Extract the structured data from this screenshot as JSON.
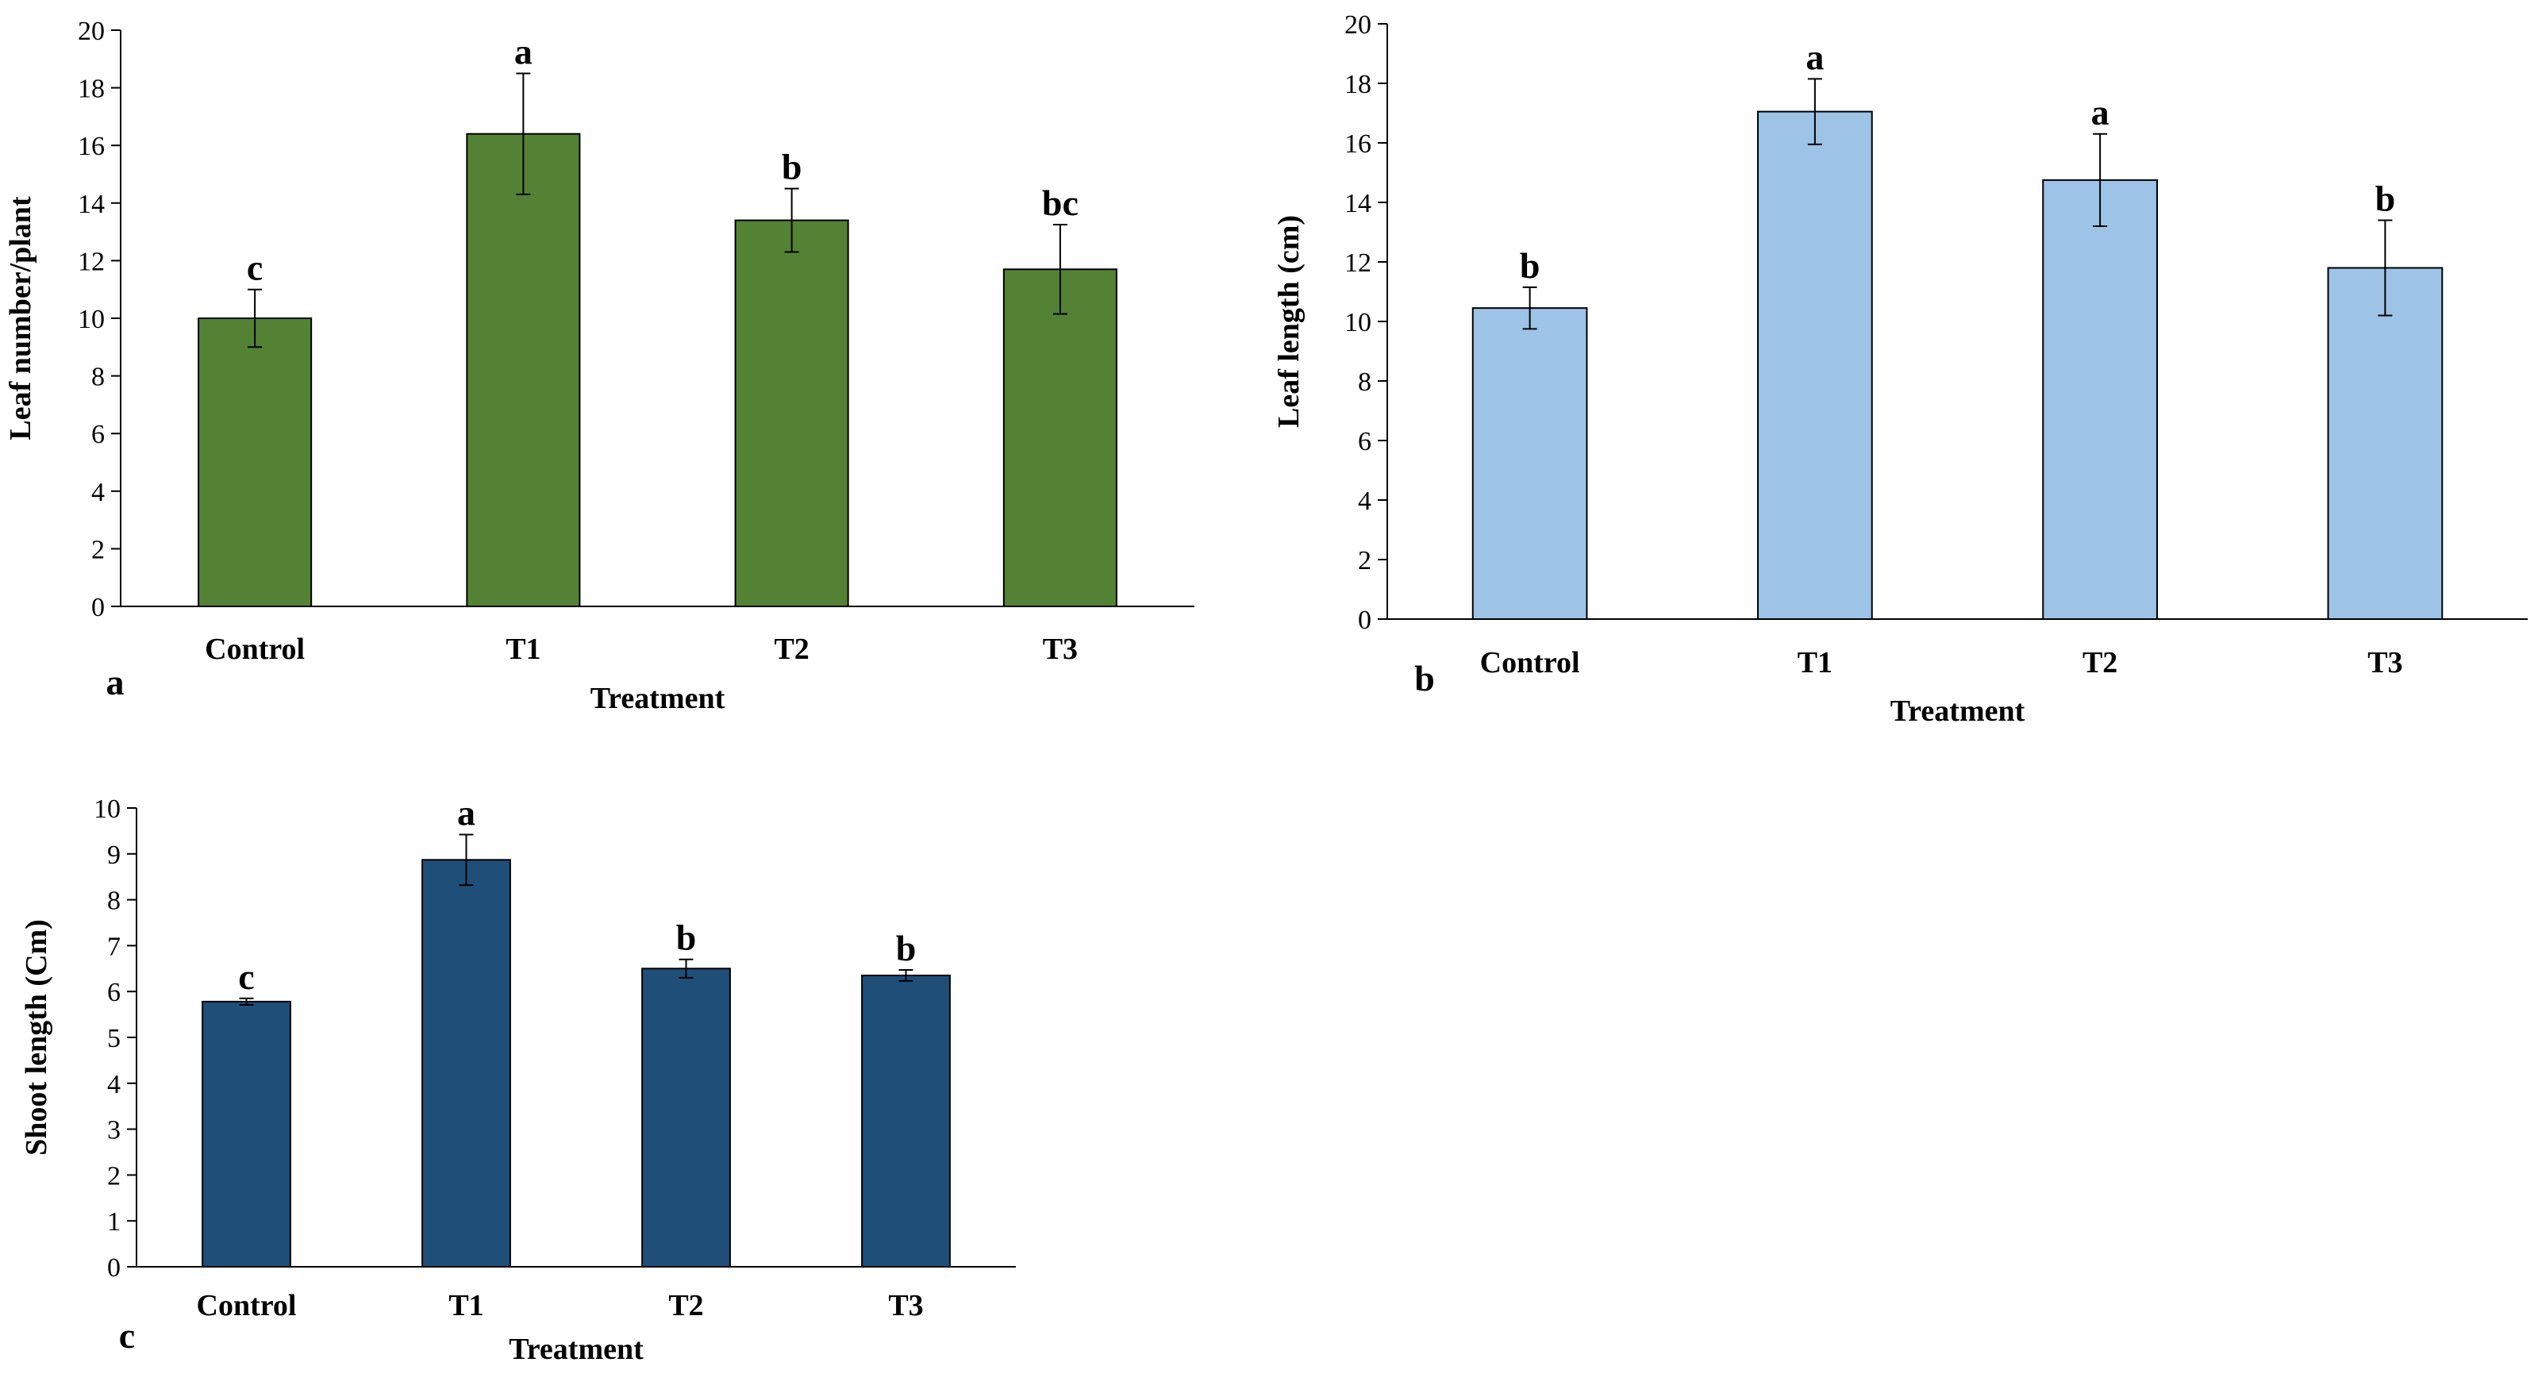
{
  "chart_data": [
    {
      "type": "bar",
      "panel_label": "a",
      "categories": [
        "Control",
        "T1",
        "T2",
        "T3"
      ],
      "values": [
        10.0,
        16.4,
        13.4,
        11.7
      ],
      "errors": [
        1.0,
        2.1,
        1.1,
        1.55
      ],
      "significance": [
        "c",
        "a",
        "b",
        "bc"
      ],
      "xlabel": "Treatment",
      "ylabel": "Leaf number/plant",
      "ylim": [
        0,
        20
      ],
      "yticks": [
        0,
        2,
        4,
        6,
        8,
        10,
        12,
        14,
        16,
        18,
        20
      ],
      "color": "#548235",
      "grid": false
    },
    {
      "type": "bar",
      "panel_label": "b",
      "categories": [
        "Control",
        "T1",
        "T2",
        "T3"
      ],
      "values": [
        10.45,
        17.05,
        14.75,
        11.8
      ],
      "errors": [
        0.7,
        1.1,
        1.55,
        1.6
      ],
      "significance": [
        "b",
        "a",
        "a",
        "b"
      ],
      "xlabel": "Treatment",
      "ylabel": "Leaf length (cm)",
      "ylim": [
        0,
        20
      ],
      "yticks": [
        0,
        2,
        4,
        6,
        8,
        10,
        12,
        14,
        16,
        18,
        20
      ],
      "color": "#9DC3E6",
      "grid": false
    },
    {
      "type": "bar",
      "panel_label": "c",
      "categories": [
        "Control",
        "T1",
        "T2",
        "T3"
      ],
      "values": [
        5.78,
        8.87,
        6.5,
        6.35
      ],
      "errors": [
        0.07,
        0.55,
        0.2,
        0.12
      ],
      "significance": [
        "c",
        "a",
        "b",
        "b"
      ],
      "xlabel": "Treatment",
      "ylabel": "Shoot length (Cm)",
      "ylim": [
        0,
        10
      ],
      "yticks": [
        0,
        1,
        2,
        3,
        4,
        5,
        6,
        7,
        8,
        9,
        10
      ],
      "color": "#1F4E79",
      "grid": false
    }
  ]
}
